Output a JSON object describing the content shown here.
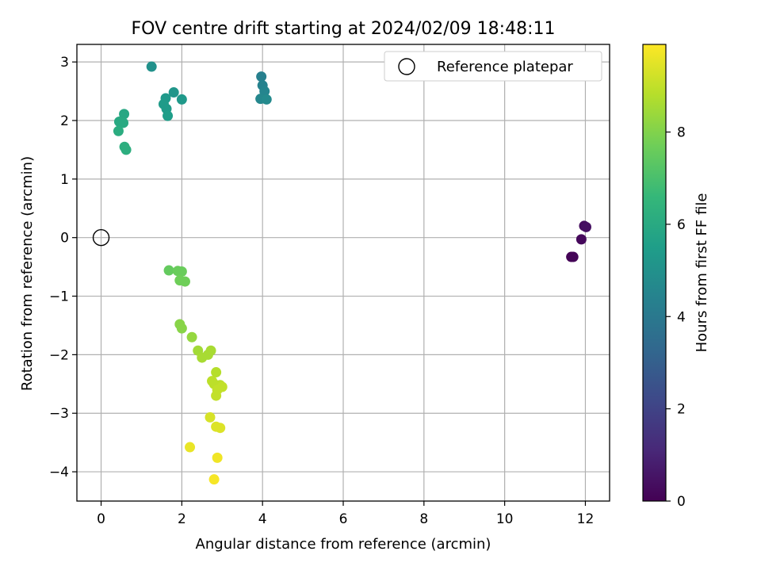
{
  "chart_data": {
    "type": "scatter",
    "title": "FOV centre drift starting at 2024/02/09 18:48:11",
    "xlabel": "Angular distance from reference (arcmin)",
    "ylabel": "Rotation from reference (arcmin)",
    "xlim": [
      -0.6,
      12.6
    ],
    "ylim": [
      -4.5,
      3.3
    ],
    "xticks": [
      0,
      2,
      4,
      6,
      8,
      10,
      12
    ],
    "yticks": [
      -4,
      -3,
      -2,
      -1,
      0,
      1,
      2,
      3
    ],
    "grid": true,
    "legend": {
      "placement": "top-right",
      "entries": [
        "Reference platepar"
      ]
    },
    "reference": {
      "name": "Reference platepar",
      "x": 0,
      "y": 0
    },
    "colorbar": {
      "label": "Hours from first FF file",
      "colormap": "viridis",
      "range": [
        0,
        9.9
      ],
      "ticks": [
        0,
        2,
        4,
        6,
        8
      ]
    },
    "colormap_stops": [
      "#440154",
      "#482878",
      "#3e4989",
      "#31688e",
      "#26828e",
      "#1f9e89",
      "#35b779",
      "#6ece58",
      "#b5de2b",
      "#fde725"
    ],
    "points": [
      {
        "x": 11.65,
        "y": -0.33,
        "c": 0.05
      },
      {
        "x": 11.7,
        "y": -0.33,
        "c": 0.1
      },
      {
        "x": 11.9,
        "y": -0.03,
        "c": 0.2
      },
      {
        "x": 11.97,
        "y": 0.2,
        "c": 0.3
      },
      {
        "x": 12.02,
        "y": 0.18,
        "c": 0.4
      },
      {
        "x": 3.97,
        "y": 2.75,
        "c": 4.3
      },
      {
        "x": 4.0,
        "y": 2.6,
        "c": 4.4
      },
      {
        "x": 4.05,
        "y": 2.5,
        "c": 4.5
      },
      {
        "x": 3.95,
        "y": 2.37,
        "c": 4.6
      },
      {
        "x": 4.1,
        "y": 2.36,
        "c": 4.7
      },
      {
        "x": 1.25,
        "y": 2.92,
        "c": 5.0
      },
      {
        "x": 1.8,
        "y": 2.48,
        "c": 5.2
      },
      {
        "x": 1.6,
        "y": 2.38,
        "c": 5.3
      },
      {
        "x": 2.0,
        "y": 2.36,
        "c": 5.3
      },
      {
        "x": 1.55,
        "y": 2.28,
        "c": 5.4
      },
      {
        "x": 1.62,
        "y": 2.2,
        "c": 5.4
      },
      {
        "x": 1.65,
        "y": 2.08,
        "c": 5.5
      },
      {
        "x": 0.57,
        "y": 2.11,
        "c": 5.9
      },
      {
        "x": 0.45,
        "y": 1.98,
        "c": 6.0
      },
      {
        "x": 0.55,
        "y": 1.96,
        "c": 6.0
      },
      {
        "x": 0.43,
        "y": 1.82,
        "c": 6.1
      },
      {
        "x": 0.58,
        "y": 1.55,
        "c": 6.2
      },
      {
        "x": 0.62,
        "y": 1.5,
        "c": 6.2
      },
      {
        "x": 1.68,
        "y": -0.56,
        "c": 7.5
      },
      {
        "x": 1.9,
        "y": -0.57,
        "c": 7.6
      },
      {
        "x": 2.0,
        "y": -0.58,
        "c": 7.6
      },
      {
        "x": 1.95,
        "y": -0.73,
        "c": 7.7
      },
      {
        "x": 2.08,
        "y": -0.75,
        "c": 7.7
      },
      {
        "x": 1.95,
        "y": -1.48,
        "c": 8.1
      },
      {
        "x": 2.0,
        "y": -1.55,
        "c": 8.1
      },
      {
        "x": 2.25,
        "y": -1.7,
        "c": 8.3
      },
      {
        "x": 2.4,
        "y": -1.93,
        "c": 8.5
      },
      {
        "x": 2.5,
        "y": -2.05,
        "c": 8.6
      },
      {
        "x": 2.65,
        "y": -2.0,
        "c": 8.6
      },
      {
        "x": 2.72,
        "y": -1.93,
        "c": 8.6
      },
      {
        "x": 2.85,
        "y": -2.3,
        "c": 8.8
      },
      {
        "x": 2.75,
        "y": -2.45,
        "c": 8.9
      },
      {
        "x": 2.8,
        "y": -2.5,
        "c": 8.9
      },
      {
        "x": 2.95,
        "y": -2.52,
        "c": 8.9
      },
      {
        "x": 3.0,
        "y": -2.55,
        "c": 9.0
      },
      {
        "x": 2.88,
        "y": -2.6,
        "c": 9.0
      },
      {
        "x": 2.85,
        "y": -2.7,
        "c": 9.0
      },
      {
        "x": 2.7,
        "y": -3.07,
        "c": 9.3
      },
      {
        "x": 2.85,
        "y": -3.23,
        "c": 9.4
      },
      {
        "x": 2.95,
        "y": -3.25,
        "c": 9.4
      },
      {
        "x": 2.2,
        "y": -3.58,
        "c": 9.6
      },
      {
        "x": 2.88,
        "y": -3.76,
        "c": 9.7
      },
      {
        "x": 2.8,
        "y": -4.13,
        "c": 9.8
      }
    ]
  }
}
